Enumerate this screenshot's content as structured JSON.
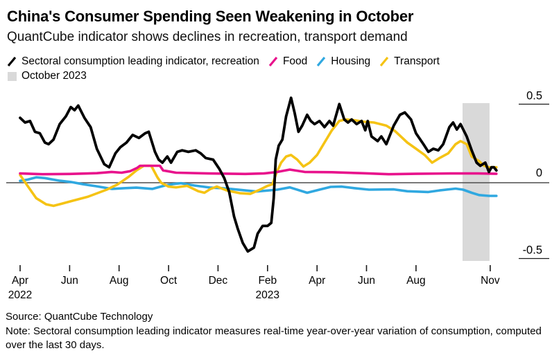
{
  "header": {
    "title": "China's Consumer Spending Seen Weakening in October",
    "subtitle": "QuantCube indicator shows declines in recreation, transport demand"
  },
  "legend": {
    "items": [
      {
        "label": "Sectoral consumption leading indicator, recreation",
        "color": "#000000"
      },
      {
        "label": "Food",
        "color": "#e8128c"
      },
      {
        "label": "Housing",
        "color": "#30a8e0"
      },
      {
        "label": "Transport",
        "color": "#f5c314"
      }
    ],
    "band_item": {
      "label": "October 2023",
      "color": "#d9d9d9"
    }
  },
  "footer": {
    "source": "Source: QuantCube Technology",
    "note": "Note: Sectoral consumption leading indicator measures real-time year-over-year variation of consumption, computed over the last 30 days."
  },
  "chart_data": {
    "type": "line",
    "title": "China's Consumer Spending Seen Weakening in October",
    "subtitle": "QuantCube indicator shows declines in recreation, transport demand",
    "x_unit": "months since Apr 2022",
    "x_axis": {
      "ticks": [
        {
          "m": 0,
          "label": "Apr",
          "year": "2022"
        },
        {
          "m": 2,
          "label": "Jun"
        },
        {
          "m": 4,
          "label": "Aug"
        },
        {
          "m": 6,
          "label": "Oct"
        },
        {
          "m": 8,
          "label": "Dec"
        },
        {
          "m": 10,
          "label": "Feb",
          "year": "2023"
        },
        {
          "m": 12,
          "label": "Apr"
        },
        {
          "m": 14,
          "label": "Jun"
        },
        {
          "m": 16,
          "label": "Aug"
        },
        {
          "m": 19,
          "label": "Nov"
        }
      ]
    },
    "y_axis": {
      "ticks": [
        0.5,
        0,
        -0.5
      ],
      "labels": [
        "0.5",
        "0",
        "-0.5"
      ],
      "range": [
        -0.6,
        0.65
      ],
      "zero_line": true,
      "position": "right"
    },
    "highlight_band": {
      "label": "October 2023",
      "from_m": 17.88,
      "to_m": 18.97,
      "color": "#d9d9d9"
    },
    "legend_position": "top-left",
    "grid": false,
    "series": [
      {
        "id": "recreation",
        "name": "Sectoral consumption leading indicator, recreation",
        "color": "#000000",
        "points": [
          [
            0,
            0.42
          ],
          [
            0.2,
            0.39
          ],
          [
            0.4,
            0.4
          ],
          [
            0.6,
            0.33
          ],
          [
            0.8,
            0.32
          ],
          [
            1,
            0.26
          ],
          [
            1.15,
            0.25
          ],
          [
            1.35,
            0.28
          ],
          [
            1.6,
            0.38
          ],
          [
            1.85,
            0.43
          ],
          [
            2.05,
            0.49
          ],
          [
            2.2,
            0.47
          ],
          [
            2.35,
            0.5
          ],
          [
            2.6,
            0.42
          ],
          [
            2.85,
            0.36
          ],
          [
            3.1,
            0.22
          ],
          [
            3.4,
            0.12
          ],
          [
            3.6,
            0.1
          ],
          [
            3.85,
            0.19
          ],
          [
            4.05,
            0.23
          ],
          [
            4.3,
            0.26
          ],
          [
            4.55,
            0.31
          ],
          [
            4.8,
            0.29
          ],
          [
            5.05,
            0.32
          ],
          [
            5.2,
            0.33
          ],
          [
            5.45,
            0.2
          ],
          [
            5.6,
            0.15
          ],
          [
            5.75,
            0.13
          ],
          [
            5.95,
            0.17
          ],
          [
            6.1,
            0.13
          ],
          [
            6.35,
            0.2
          ],
          [
            6.55,
            0.21
          ],
          [
            6.8,
            0.2
          ],
          [
            7.1,
            0.21
          ],
          [
            7.3,
            0.19
          ],
          [
            7.5,
            0.16
          ],
          [
            7.8,
            0.15
          ],
          [
            8.05,
            0.09
          ],
          [
            8.25,
            0.03
          ],
          [
            8.45,
            -0.06
          ],
          [
            8.65,
            -0.22
          ],
          [
            8.8,
            -0.3
          ],
          [
            9,
            -0.39
          ],
          [
            9.2,
            -0.445
          ],
          [
            9.45,
            -0.42
          ],
          [
            9.6,
            -0.33
          ],
          [
            9.8,
            -0.28
          ],
          [
            10,
            -0.28
          ],
          [
            10.15,
            -0.26
          ],
          [
            10.25,
            -0.1
          ],
          [
            10.33,
            0.15
          ],
          [
            10.45,
            0.24
          ],
          [
            10.6,
            0.28
          ],
          [
            10.75,
            0.43
          ],
          [
            10.95,
            0.55
          ],
          [
            11.1,
            0.45
          ],
          [
            11.25,
            0.33
          ],
          [
            11.4,
            0.37
          ],
          [
            11.6,
            0.44
          ],
          [
            11.75,
            0.4
          ],
          [
            11.9,
            0.38
          ],
          [
            12.1,
            0.4
          ],
          [
            12.3,
            0.36
          ],
          [
            12.5,
            0.4
          ],
          [
            12.65,
            0.37
          ],
          [
            12.9,
            0.51
          ],
          [
            13.1,
            0.41
          ],
          [
            13.25,
            0.39
          ],
          [
            13.4,
            0.41
          ],
          [
            13.6,
            0.38
          ],
          [
            13.8,
            0.4
          ],
          [
            13.95,
            0.34
          ],
          [
            14.05,
            0.4
          ],
          [
            14.2,
            0.3
          ],
          [
            14.45,
            0.27
          ],
          [
            14.6,
            0.3
          ],
          [
            14.8,
            0.25
          ],
          [
            15.1,
            0.37
          ],
          [
            15.35,
            0.44
          ],
          [
            15.55,
            0.455
          ],
          [
            15.8,
            0.41
          ],
          [
            16,
            0.32
          ],
          [
            16.3,
            0.25
          ],
          [
            16.5,
            0.2
          ],
          [
            16.7,
            0.22
          ],
          [
            16.9,
            0.21
          ],
          [
            17.1,
            0.25
          ],
          [
            17.35,
            0.36
          ],
          [
            17.5,
            0.39
          ],
          [
            17.65,
            0.345
          ],
          [
            17.8,
            0.38
          ],
          [
            18.05,
            0.3
          ],
          [
            18.25,
            0.21
          ],
          [
            18.45,
            0.13
          ],
          [
            18.6,
            0.11
          ],
          [
            18.8,
            0.13
          ],
          [
            18.95,
            0.07
          ],
          [
            19.05,
            0.1
          ],
          [
            19.15,
            0.1
          ],
          [
            19.25,
            0.08
          ]
        ]
      },
      {
        "id": "food",
        "name": "Food",
        "color": "#e8128c",
        "points": [
          [
            0,
            0.06
          ],
          [
            0.9,
            0.055
          ],
          [
            2,
            0.057
          ],
          [
            3.1,
            0.062
          ],
          [
            3.7,
            0.07
          ],
          [
            4.1,
            0.065
          ],
          [
            4.45,
            0.075
          ],
          [
            4.72,
            0.095
          ],
          [
            4.85,
            0.11
          ],
          [
            5.3,
            0.11
          ],
          [
            5.65,
            0.11
          ],
          [
            5.78,
            0.08
          ],
          [
            6.3,
            0.065
          ],
          [
            7.6,
            0.06
          ],
          [
            9.1,
            0.057
          ],
          [
            9.85,
            0.06
          ],
          [
            10.4,
            0.07
          ],
          [
            10.9,
            0.085
          ],
          [
            11.5,
            0.07
          ],
          [
            12.6,
            0.068
          ],
          [
            13.8,
            0.062
          ],
          [
            14.9,
            0.055
          ],
          [
            16,
            0.058
          ],
          [
            17.4,
            0.06
          ],
          [
            18.5,
            0.06
          ],
          [
            19.25,
            0.058
          ]
        ]
      },
      {
        "id": "housing",
        "name": "Housing",
        "color": "#30a8e0",
        "points": [
          [
            0,
            0.012
          ],
          [
            0.3,
            0.02
          ],
          [
            0.65,
            0.035
          ],
          [
            1,
            0.03
          ],
          [
            1.6,
            0.013
          ],
          [
            2.05,
            0.005
          ],
          [
            2.55,
            -0.01
          ],
          [
            3.05,
            -0.022
          ],
          [
            3.7,
            -0.04
          ],
          [
            4.25,
            -0.035
          ],
          [
            4.7,
            -0.032
          ],
          [
            5.35,
            -0.04
          ],
          [
            5.85,
            -0.018
          ],
          [
            6.2,
            -0.008
          ],
          [
            6.5,
            -0.003
          ],
          [
            7.05,
            -0.018
          ],
          [
            7.7,
            -0.032
          ],
          [
            8.15,
            -0.035
          ],
          [
            8.65,
            -0.042
          ],
          [
            9.55,
            -0.057
          ],
          [
            10.4,
            -0.045
          ],
          [
            10.9,
            -0.03
          ],
          [
            11.6,
            -0.065
          ],
          [
            12.1,
            -0.045
          ],
          [
            12.55,
            -0.027
          ],
          [
            13,
            -0.025
          ],
          [
            13.5,
            -0.035
          ],
          [
            14.1,
            -0.045
          ],
          [
            15.1,
            -0.043
          ],
          [
            15.65,
            -0.055
          ],
          [
            16.5,
            -0.06
          ],
          [
            16.95,
            -0.05
          ],
          [
            17.6,
            -0.038
          ],
          [
            17.9,
            -0.045
          ],
          [
            18.25,
            -0.065
          ],
          [
            18.55,
            -0.08
          ],
          [
            18.95,
            -0.085
          ],
          [
            19.25,
            -0.085
          ]
        ]
      },
      {
        "id": "transport",
        "name": "Transport",
        "color": "#f5c314",
        "points": [
          [
            0,
            0.05
          ],
          [
            0.3,
            -0.02
          ],
          [
            0.65,
            -0.1
          ],
          [
            1.05,
            -0.14
          ],
          [
            1.35,
            -0.15
          ],
          [
            1.7,
            -0.135
          ],
          [
            2.05,
            -0.12
          ],
          [
            2.75,
            -0.09
          ],
          [
            3.5,
            -0.045
          ],
          [
            3.95,
            -0.01
          ],
          [
            4.4,
            0.04
          ],
          [
            4.7,
            0.08
          ],
          [
            5,
            0.11
          ],
          [
            5.3,
            0.11
          ],
          [
            5.55,
            0.035
          ],
          [
            5.7,
            0
          ],
          [
            6,
            -0.025
          ],
          [
            6.3,
            -0.03
          ],
          [
            6.75,
            -0.02
          ],
          [
            7.2,
            -0.055
          ],
          [
            7.45,
            -0.065
          ],
          [
            7.7,
            -0.04
          ],
          [
            7.95,
            -0.025
          ],
          [
            8.35,
            -0.05
          ],
          [
            8.9,
            -0.068
          ],
          [
            9.3,
            -0.072
          ],
          [
            9.65,
            -0.048
          ],
          [
            10,
            -0.02
          ],
          [
            10.2,
            -0.01
          ],
          [
            10.35,
            0.06
          ],
          [
            10.55,
            0.13
          ],
          [
            10.75,
            0.17
          ],
          [
            10.95,
            0.18
          ],
          [
            11.2,
            0.15
          ],
          [
            11.45,
            0.105
          ],
          [
            11.7,
            0.13
          ],
          [
            12,
            0.18
          ],
          [
            12.3,
            0.26
          ],
          [
            12.6,
            0.34
          ],
          [
            12.9,
            0.4
          ],
          [
            13.15,
            0.41
          ],
          [
            13.5,
            0.405
          ],
          [
            13.9,
            0.395
          ],
          [
            14.3,
            0.39
          ],
          [
            14.8,
            0.37
          ],
          [
            15.15,
            0.335
          ],
          [
            15.65,
            0.26
          ],
          [
            16,
            0.22
          ],
          [
            16.35,
            0.18
          ],
          [
            16.65,
            0.13
          ],
          [
            16.95,
            0.16
          ],
          [
            17.3,
            0.19
          ],
          [
            17.6,
            0.25
          ],
          [
            17.8,
            0.27
          ],
          [
            18.05,
            0.25
          ],
          [
            18.25,
            0.17
          ],
          [
            18.55,
            0.14
          ],
          [
            18.75,
            0.11
          ],
          [
            18.95,
            0.1
          ],
          [
            19.25,
            0.1
          ]
        ]
      }
    ]
  }
}
